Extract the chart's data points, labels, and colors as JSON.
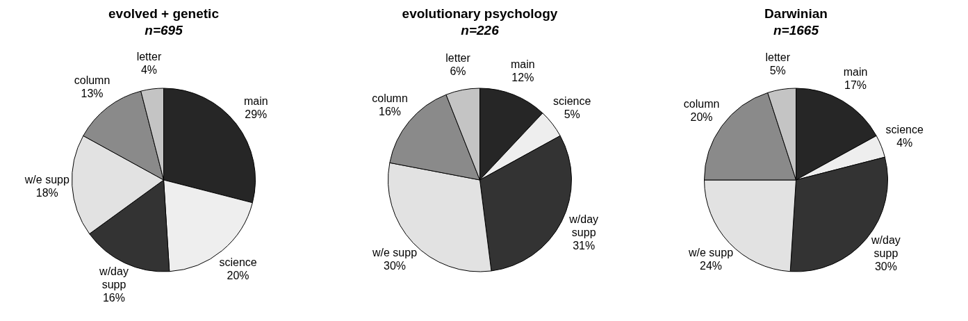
{
  "chart_data": [
    {
      "type": "pie",
      "title": "evolved + genetic",
      "subtitle": "n=695",
      "categories": [
        "main",
        "science",
        "w/day supp",
        "w/e supp",
        "column",
        "letter"
      ],
      "values": [
        29,
        20,
        16,
        18,
        13,
        4
      ],
      "value_labels": [
        "29%",
        "20%",
        "16%",
        "18%",
        "13%",
        "4%"
      ],
      "colors": [
        "#262626",
        "#eeeeee",
        "#333333",
        "#e2e2e2",
        "#8a8a8a",
        "#c4c4c4"
      ],
      "legend": false
    },
    {
      "type": "pie",
      "title": "evolutionary psychology",
      "subtitle": "n=226",
      "categories": [
        "main",
        "science",
        "w/day supp",
        "w/e supp",
        "column",
        "letter"
      ],
      "values": [
        12,
        5,
        31,
        30,
        16,
        6
      ],
      "value_labels": [
        "12%",
        "5%",
        "31%",
        "30%",
        "16%",
        "6%"
      ],
      "colors": [
        "#262626",
        "#eeeeee",
        "#333333",
        "#e2e2e2",
        "#8a8a8a",
        "#c4c4c4"
      ],
      "legend": false
    },
    {
      "type": "pie",
      "title": "Darwinian",
      "subtitle": "n=1665",
      "categories": [
        "main",
        "science",
        "w/day supp",
        "w/e supp",
        "column",
        "letter"
      ],
      "values": [
        17,
        4,
        30,
        24,
        20,
        5
      ],
      "value_labels": [
        "17%",
        "4%",
        "30%",
        "24%",
        "20%",
        "5%"
      ],
      "colors": [
        "#262626",
        "#eeeeee",
        "#333333",
        "#e2e2e2",
        "#8a8a8a",
        "#c4c4c4"
      ],
      "legend": false
    }
  ]
}
